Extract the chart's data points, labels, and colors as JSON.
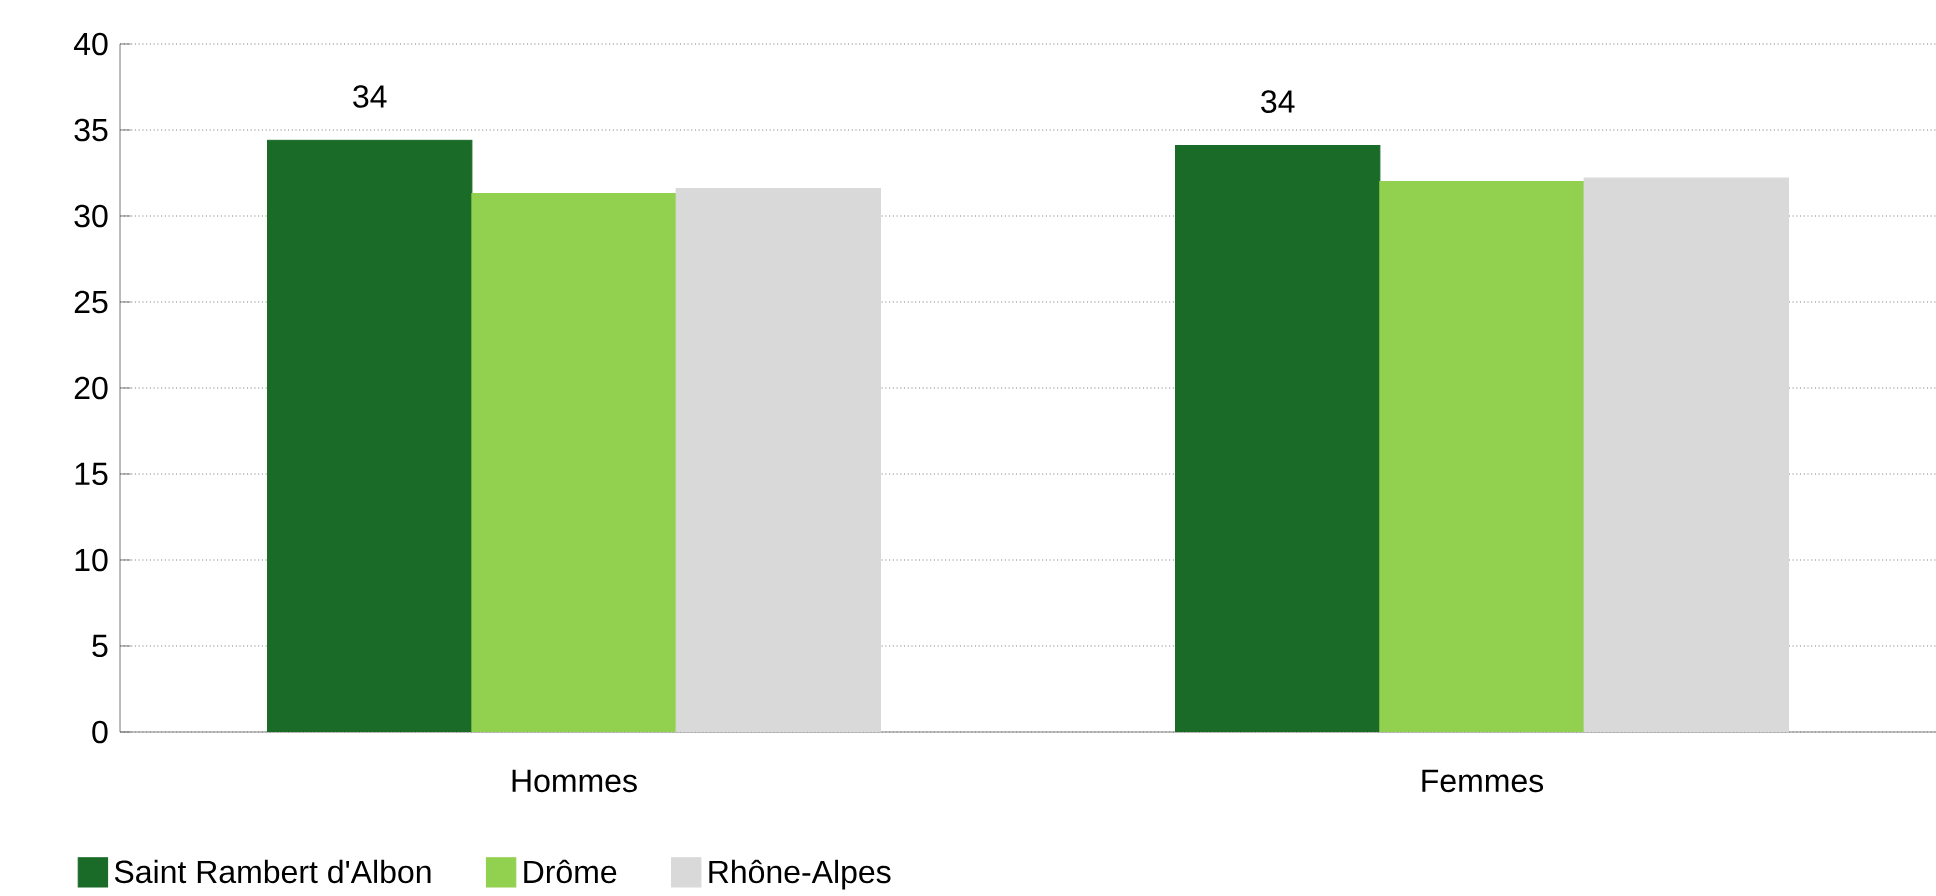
{
  "chart_data": {
    "type": "bar",
    "categories": [
      "Hommes",
      "Femmes"
    ],
    "series": [
      {
        "name": "Saint Rambert d'Albon",
        "color": "#1a6b27",
        "values": [
          34.4,
          34.1
        ],
        "value_labels": [
          "34",
          "34"
        ]
      },
      {
        "name": "Drôme",
        "color": "#92d050",
        "values": [
          31.3,
          32.0
        ]
      },
      {
        "name": "Rhône-Alpes",
        "color": "#d9d9d9",
        "values": [
          31.6,
          32.2
        ]
      }
    ],
    "ylim": [
      0,
      40
    ],
    "yticks": [
      0,
      5,
      10,
      15,
      20,
      25,
      30,
      35,
      40
    ],
    "grid": "y",
    "legend": "bottom left"
  }
}
